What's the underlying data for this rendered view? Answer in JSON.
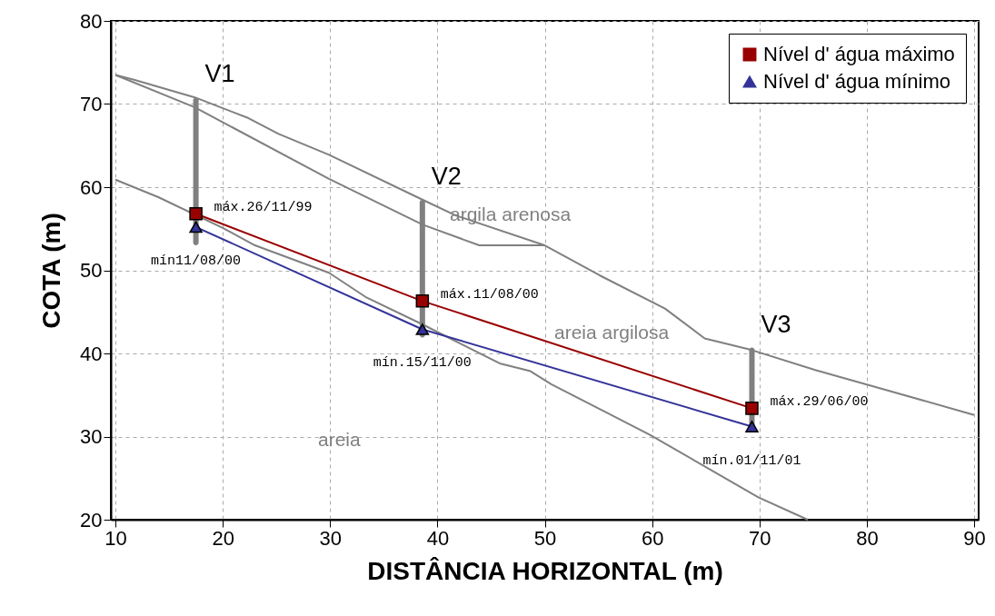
{
  "chart_data": {
    "type": "line",
    "xlabel": "DISTÂNCIA HORIZONTAL (m)",
    "ylabel": "COTA (m)",
    "xlim": [
      10,
      90
    ],
    "ylim": [
      20,
      80
    ],
    "xticks": [
      10,
      20,
      30,
      40,
      50,
      60,
      70,
      80,
      90
    ],
    "yticks": [
      20,
      30,
      40,
      50,
      60,
      70,
      80
    ],
    "grid": true,
    "legend": "top right",
    "series": [
      {
        "color": "#808080",
        "marker": "none",
        "x": [
          10,
          11.8,
          17.4,
          22.4,
          25.2,
          29.9,
          38.6,
          41.7,
          50,
          55.1,
          61.2,
          64.9,
          66.8,
          69.3,
          75.2,
          82.1,
          90
        ],
        "values": [
          73.5,
          72.9,
          70.8,
          68.3,
          66.4,
          63.9,
          58.5,
          56.6,
          53,
          49.4,
          45.4,
          41.8,
          41.2,
          40.4,
          38,
          35.5,
          32.6
        ]
      },
      {
        "color": "#808080",
        "marker": "none",
        "x": [
          10,
          17.4,
          29.9,
          38.6,
          43.9,
          50
        ],
        "values": [
          73.5,
          69.6,
          61,
          55.5,
          53,
          53
        ]
      },
      {
        "color": "#808080",
        "marker": "none",
        "x": [
          10,
          14,
          20,
          23,
          29.9,
          33.3,
          38.6,
          45.8,
          48.6,
          50.6,
          55.6,
          59.8,
          69.9,
          74.5
        ],
        "values": [
          60.9,
          58.8,
          55.1,
          53,
          49.7,
          46.8,
          43.5,
          38.8,
          37.9,
          36.3,
          33,
          30.2,
          22.7,
          20
        ]
      },
      {
        "type": "bar",
        "color": "#808080",
        "x": [
          17.5,
          38.6,
          69.3
        ],
        "base": [
          53,
          41.9,
          31
        ],
        "values": [
          17.8,
          16.6,
          9.7
        ]
      },
      {
        "name": "Nível d' água máximo",
        "color": "#990000",
        "marker": "square",
        "x": [
          17.5,
          38.6,
          69.3
        ],
        "values": [
          56.8,
          46.3,
          33.4
        ]
      },
      {
        "name": "Nível d' água mínimo",
        "color": "#333399",
        "marker": "triangle",
        "x": [
          17.5,
          38.6,
          69.3
        ],
        "values": [
          55.2,
          42.9,
          31.2
        ]
      }
    ],
    "annotations": [
      {
        "text": "V1",
        "x": 17.5,
        "y": 70.8
      },
      {
        "text": "V2",
        "x": 38.6,
        "y": 58.5
      },
      {
        "text": "V3",
        "x": 69.3,
        "y": 40.7
      },
      "argila arenosa",
      "areia argilosa",
      "areia",
      {
        "text": "máx.26/11/99",
        "x": 17.5,
        "y": 56.8
      },
      {
        "text": "mín11/08/00",
        "x": 17.5,
        "y": 55.2
      },
      {
        "text": "máx.11/08/00",
        "x": 38.6,
        "y": 46.3
      },
      {
        "text": "mín.15/11/00",
        "x": 38.6,
        "y": 42.9
      },
      {
        "text": "máx.29/06/00",
        "x": 69.3,
        "y": 33.4
      },
      {
        "text": "mín.01/11/01",
        "x": 69.3,
        "y": 31.2
      }
    ]
  }
}
